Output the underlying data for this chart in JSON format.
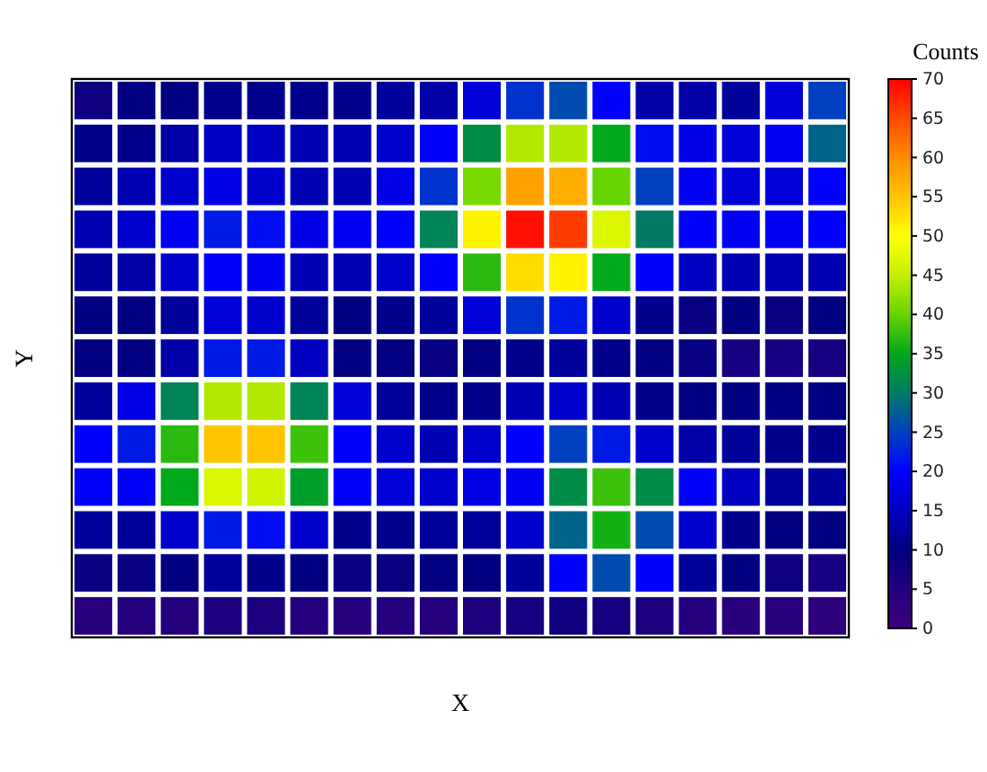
{
  "chart_data": {
    "type": "heatmap",
    "xlabel": "X",
    "ylabel": "Y",
    "clabel": "Counts",
    "categories": [
      null,
      null,
      null,
      null,
      null,
      null,
      null,
      null,
      null,
      null,
      null,
      null,
      null,
      null,
      null,
      null,
      null,
      null
    ],
    "y_categories": [
      null,
      null,
      null,
      null,
      null,
      null,
      null,
      null,
      null,
      null,
      null,
      null,
      null
    ],
    "cells": [
      [
        8,
        10,
        10,
        11,
        11,
        11,
        11,
        12,
        13,
        17,
        24,
        26,
        20,
        13,
        13,
        12,
        17,
        25
      ],
      [
        11,
        11,
        13,
        15,
        15,
        14,
        14,
        16,
        20,
        32,
        44,
        44,
        35,
        21,
        18,
        17,
        19,
        28
      ],
      [
        12,
        14,
        16,
        18,
        16,
        14,
        14,
        18,
        24,
        41,
        58,
        57,
        40,
        25,
        19,
        17,
        17,
        20
      ],
      [
        14,
        16,
        19,
        22,
        21,
        18,
        19,
        20,
        31,
        51,
        69,
        66,
        47,
        30,
        20,
        19,
        19,
        20
      ],
      [
        12,
        13,
        16,
        20,
        19,
        14,
        14,
        16,
        20,
        37,
        53,
        51,
        35,
        20,
        15,
        14,
        14,
        14
      ],
      [
        10,
        10,
        12,
        17,
        16,
        12,
        10,
        11,
        12,
        17,
        24,
        22,
        16,
        11,
        9,
        10,
        9,
        10
      ],
      [
        10,
        10,
        13,
        22,
        22,
        15,
        10,
        10,
        9,
        10,
        11,
        12,
        11,
        10,
        9,
        7,
        7,
        7
      ],
      [
        12,
        18,
        31,
        44,
        44,
        31,
        17,
        12,
        11,
        11,
        14,
        16,
        14,
        11,
        10,
        10,
        10,
        10
      ],
      [
        20,
        22,
        37,
        55,
        55,
        38,
        20,
        16,
        14,
        16,
        20,
        25,
        22,
        16,
        13,
        12,
        11,
        11
      ],
      [
        20,
        20,
        35,
        47,
        46,
        34,
        20,
        17,
        16,
        18,
        19,
        32,
        38,
        32,
        20,
        15,
        12,
        12
      ],
      [
        12,
        12,
        16,
        22,
        21,
        16,
        11,
        11,
        12,
        12,
        16,
        28,
        36,
        26,
        16,
        11,
        10,
        10
      ],
      [
        9,
        9,
        10,
        12,
        11,
        10,
        9,
        9,
        10,
        10,
        12,
        20,
        26,
        20,
        12,
        10,
        8,
        7
      ],
      [
        4,
        5,
        5,
        6,
        6,
        5,
        5,
        5,
        5,
        6,
        7,
        8,
        7,
        6,
        5,
        4,
        4,
        3
      ]
    ],
    "clim": [
      0,
      70
    ],
    "cticks": [
      0,
      5,
      10,
      15,
      20,
      25,
      30,
      35,
      40,
      45,
      50,
      55,
      60,
      65,
      70
    ],
    "tick_labels": false
  }
}
